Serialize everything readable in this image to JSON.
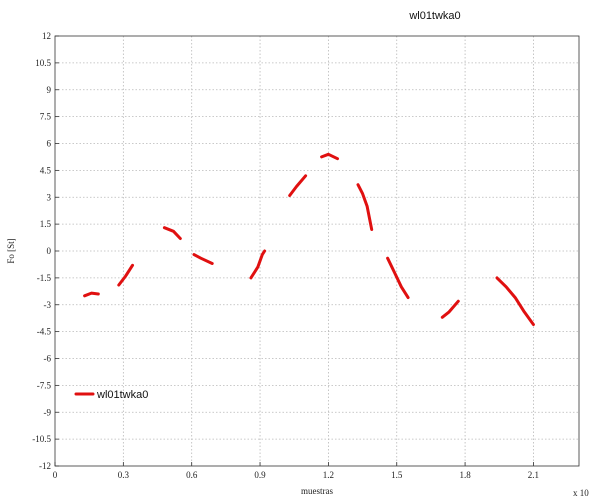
{
  "chart_data": {
    "type": "line",
    "title": "wl01twka0",
    "xlabel": "muestras",
    "ylabel": "Fo [St]",
    "x_exponent_label": "x 10",
    "xlim": [
      0,
      2.3
    ],
    "ylim": [
      -12,
      12
    ],
    "xticks": [
      0,
      0.3,
      0.6,
      0.9,
      1.2,
      1.5,
      1.8,
      2.1
    ],
    "yticks": [
      -12,
      -10.5,
      -9,
      -7.5,
      -6,
      -4.5,
      -3,
      -1.5,
      0,
      1.5,
      3,
      4.5,
      6,
      7.5,
      9,
      10.5,
      12
    ],
    "xtick_labels": [
      "0",
      "0.3",
      "0.6",
      "0.9",
      "1.2",
      "1.5",
      "1.8",
      "2.1"
    ],
    "ytick_labels": [
      "-12",
      "-10.5",
      "-9",
      "-7.5",
      "-6",
      "-4.5",
      "-3",
      "-1.5",
      "0",
      "1.5",
      "3",
      "4.5",
      "6",
      "7.5",
      "9",
      "10.5",
      "12"
    ],
    "grid": true,
    "legend_position": "bottom-left",
    "series": [
      {
        "name": "wl01twka0",
        "color": "#e01010",
        "segments": [
          [
            [
              0.13,
              -2.5
            ],
            [
              0.16,
              -2.35
            ],
            [
              0.19,
              -2.4
            ]
          ],
          [
            [
              0.28,
              -1.9
            ],
            [
              0.31,
              -1.4
            ],
            [
              0.34,
              -0.8
            ]
          ],
          [
            [
              0.48,
              1.3
            ],
            [
              0.52,
              1.1
            ],
            [
              0.55,
              0.7
            ]
          ],
          [
            [
              0.61,
              -0.2
            ],
            [
              0.64,
              -0.4
            ],
            [
              0.69,
              -0.7
            ]
          ],
          [
            [
              0.86,
              -1.5
            ],
            [
              0.89,
              -0.9
            ],
            [
              0.91,
              -0.2
            ],
            [
              0.92,
              0.0
            ]
          ],
          [
            [
              1.03,
              3.1
            ],
            [
              1.06,
              3.6
            ],
            [
              1.1,
              4.2
            ]
          ],
          [
            [
              1.17,
              5.25
            ],
            [
              1.2,
              5.4
            ],
            [
              1.24,
              5.15
            ]
          ],
          [
            [
              1.33,
              3.7
            ],
            [
              1.35,
              3.2
            ],
            [
              1.37,
              2.5
            ],
            [
              1.39,
              1.2
            ]
          ],
          [
            [
              1.46,
              -0.4
            ],
            [
              1.49,
              -1.2
            ],
            [
              1.52,
              -2.0
            ],
            [
              1.55,
              -2.6
            ]
          ],
          [
            [
              1.7,
              -3.7
            ],
            [
              1.73,
              -3.4
            ],
            [
              1.77,
              -2.8
            ]
          ],
          [
            [
              1.94,
              -1.5
            ],
            [
              1.98,
              -2.0
            ],
            [
              2.02,
              -2.6
            ],
            [
              2.06,
              -3.4
            ],
            [
              2.1,
              -4.1
            ]
          ]
        ]
      }
    ]
  }
}
